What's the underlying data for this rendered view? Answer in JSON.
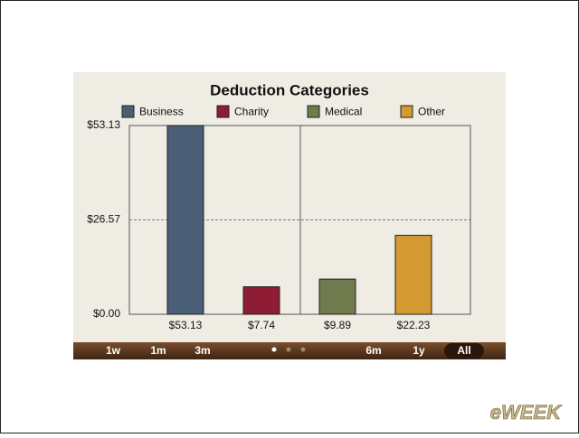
{
  "chart_data": {
    "type": "bar",
    "title": "Deduction Categories",
    "categories": [
      "Business",
      "Charity",
      "Medical",
      "Other"
    ],
    "values": [
      53.13,
      7.74,
      9.89,
      22.23
    ],
    "value_labels": [
      "$53.13",
      "$7.74",
      "$9.89",
      "$22.23"
    ],
    "colors": [
      "#4a5e78",
      "#8e1c34",
      "#6f7b4c",
      "#d49a32"
    ],
    "ylim": [
      0,
      53.13
    ],
    "yticks": [
      {
        "value": 0,
        "label": "$0.00"
      },
      {
        "value": 26.57,
        "label": "$26.57"
      },
      {
        "value": 53.13,
        "label": "$53.13"
      }
    ],
    "grid": true,
    "legend": "top"
  },
  "toolbar": {
    "buttons": [
      "1w",
      "1m",
      "3m",
      "6m",
      "1y",
      "All"
    ],
    "selected_index": 5,
    "page_count": 3,
    "page_index": 0
  },
  "watermark": "eWEEK"
}
